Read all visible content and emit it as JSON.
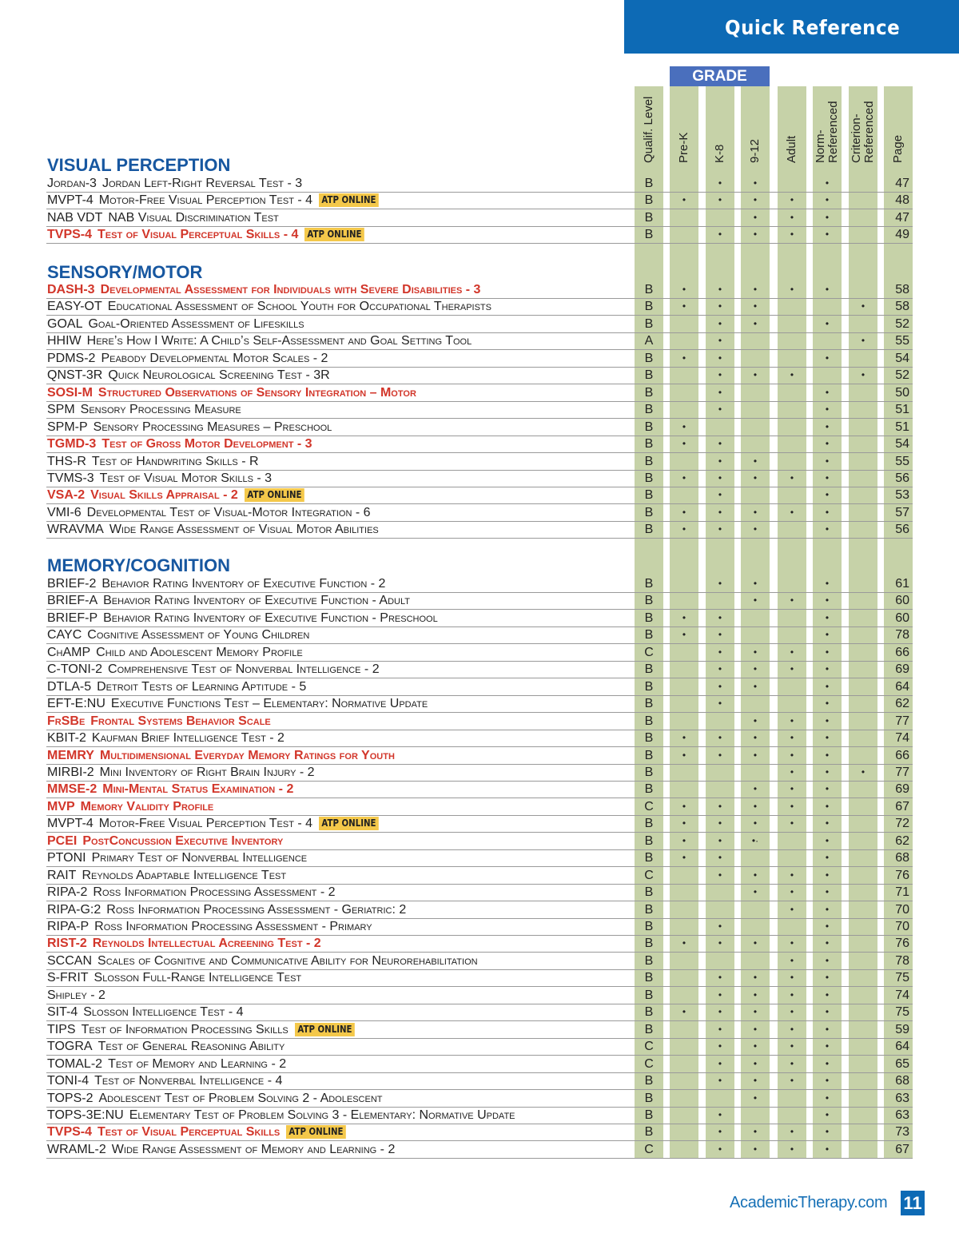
{
  "header": {
    "title": "Quick Reference",
    "grade_label": "GRADE"
  },
  "columns": [
    "Qualif. Level",
    "Pre-K",
    "K-8",
    "9-12",
    "Adult",
    "Norm-\nReferenced",
    "Criterion-\nReferenced",
    "Page"
  ],
  "colors": {
    "banner": "#0d6ab5",
    "section": "#1757a0",
    "highlight_text": "#d2362a",
    "atp_badge": "#f4c84a",
    "column_fill": "#c6d2a8",
    "grade_header": "#4a6fbd"
  },
  "atp_label": "ATP ONLINE",
  "sections": [
    {
      "title": "VISUAL PERCEPTION",
      "rows": [
        {
          "code": "Jordan-3",
          "name": "Jordan Left-Right Reversal Test - 3",
          "red": false,
          "atp": false,
          "qual": "B",
          "marks": [
            "",
            "•",
            "•",
            "",
            "•",
            ""
          ],
          "page": "47"
        },
        {
          "code": "MVPT-4",
          "name": "Motor-Free Visual Perception Test - 4",
          "red": false,
          "atp": true,
          "qual": "B",
          "marks": [
            "•",
            "•",
            "•",
            "•",
            "•",
            ""
          ],
          "page": "48"
        },
        {
          "code": "NAB VDT",
          "name": "NAB Visual Discrimination Test",
          "red": false,
          "atp": false,
          "qual": "B",
          "marks": [
            "",
            "",
            "•",
            "•",
            "•",
            ""
          ],
          "page": "47"
        },
        {
          "code": "TVPS-4",
          "name": "Test of Visual Perceptual Skills - 4",
          "red": true,
          "atp": true,
          "qual": "B",
          "marks": [
            "",
            "•",
            "•",
            "•",
            "•",
            ""
          ],
          "page": "49"
        }
      ]
    },
    {
      "title": "SENSORY/MOTOR",
      "rows": [
        {
          "code": "DASH-3",
          "name": "Developmental Assessment for Individuals with Severe Disabilities - 3",
          "red": true,
          "atp": false,
          "qual": "B",
          "marks": [
            "•",
            "•",
            "•",
            "•",
            "•",
            ""
          ],
          "page": "58"
        },
        {
          "code": "EASY-OT",
          "name": "Educational Assessment of School Youth for Occupational Therapists",
          "red": false,
          "atp": false,
          "qual": "B",
          "marks": [
            "•",
            "•",
            "•",
            "",
            "",
            "•"
          ],
          "page": "58"
        },
        {
          "code": "GOAL",
          "name": "Goal-Oriented Assessment of Lifeskills",
          "red": false,
          "atp": false,
          "qual": "B",
          "marks": [
            "",
            "•",
            "•",
            "",
            "•",
            ""
          ],
          "page": "52"
        },
        {
          "code": "HHIW",
          "name": "Here’s How I Write: A Child’s Self-Assessment and Goal Setting Tool",
          "red": false,
          "atp": false,
          "qual": "A",
          "marks": [
            "",
            "•",
            "",
            "",
            "",
            "•"
          ],
          "page": "55"
        },
        {
          "code": "PDMS-2",
          "name": "Peabody Developmental Motor Scales - 2",
          "red": false,
          "atp": false,
          "qual": "B",
          "marks": [
            "•",
            "•",
            "",
            "",
            "•",
            ""
          ],
          "page": "54"
        },
        {
          "code": "QNST-3R",
          "name": "Quick Neurological Screening Test - 3R",
          "red": false,
          "atp": false,
          "qual": "B",
          "marks": [
            "",
            "•",
            "•",
            "•",
            "",
            "•"
          ],
          "page": "52"
        },
        {
          "code": "SOSI-M",
          "name": "Structured Observations of Sensory Integration – Motor",
          "red": true,
          "atp": false,
          "qual": "B",
          "marks": [
            "",
            "•",
            "",
            "",
            "•",
            ""
          ],
          "page": "50"
        },
        {
          "code": "SPM",
          "name": "Sensory Processing Measure",
          "red": false,
          "atp": false,
          "qual": "B",
          "marks": [
            "",
            "•",
            "",
            "",
            "•",
            ""
          ],
          "page": "51"
        },
        {
          "code": "SPM-P",
          "name": "Sensory Processing Measures – Preschool",
          "red": false,
          "atp": false,
          "qual": "B",
          "marks": [
            "•",
            "",
            "",
            "",
            "•",
            ""
          ],
          "page": "51"
        },
        {
          "code": "TGMD-3",
          "name": "Test of Gross Motor Development - 3",
          "red": true,
          "atp": false,
          "qual": "B",
          "marks": [
            "•",
            "•",
            "",
            "",
            "•",
            ""
          ],
          "page": "54"
        },
        {
          "code": "THS-R",
          "name": "Test of Handwriting Skills - R",
          "red": false,
          "atp": false,
          "qual": "B",
          "marks": [
            "",
            "•",
            "•",
            "",
            "•",
            ""
          ],
          "page": "55"
        },
        {
          "code": "TVMS-3",
          "name": "Test of Visual Motor Skills - 3",
          "red": false,
          "atp": false,
          "qual": "B",
          "marks": [
            "•",
            "•",
            "•",
            "•",
            "•",
            ""
          ],
          "page": "56"
        },
        {
          "code": "VSA-2",
          "name": "Visual Skills Appraisal - 2",
          "red": true,
          "atp": true,
          "qual": "B",
          "marks": [
            "",
            "•",
            "",
            "",
            "•",
            ""
          ],
          "page": "53"
        },
        {
          "code": "VMI-6",
          "name": "Developmental Test of Visual-Motor Integration - 6",
          "red": false,
          "atp": false,
          "qual": "B",
          "marks": [
            "•",
            "•",
            "•",
            "•",
            "•",
            ""
          ],
          "page": "57"
        },
        {
          "code": "WRAVMA",
          "name": "Wide Range Assessment of Visual Motor Abilities",
          "red": false,
          "atp": false,
          "qual": "B",
          "marks": [
            "•",
            "•",
            "•",
            "",
            "•",
            ""
          ],
          "page": "56"
        }
      ]
    },
    {
      "title": "MEMORY/COGNITION",
      "rows": [
        {
          "code": "BRIEF-2",
          "name": "Behavior Rating Inventory of Executive Function - 2",
          "red": false,
          "atp": false,
          "qual": "B",
          "marks": [
            "",
            "•",
            "•",
            "",
            "•",
            ""
          ],
          "page": "61"
        },
        {
          "code": "BRIEF-A",
          "name": "Behavior Rating Inventory of Executive Function - Adult",
          "red": false,
          "atp": false,
          "qual": "B",
          "marks": [
            "",
            "",
            "•",
            "•",
            "•",
            ""
          ],
          "page": "60"
        },
        {
          "code": "BRIEF-P",
          "name": "Behavior Rating Inventory of Executive Function - Preschool",
          "red": false,
          "atp": false,
          "qual": "B",
          "marks": [
            "•",
            "•",
            "",
            "",
            "•",
            ""
          ],
          "page": "60"
        },
        {
          "code": "CAYC",
          "name": "Cognitive Assessment of Young Children",
          "red": false,
          "atp": false,
          "qual": "B",
          "marks": [
            "•",
            "•",
            "",
            "",
            "•",
            ""
          ],
          "page": "78"
        },
        {
          "code": "ChAMP",
          "name": "Child and Adolescent Memory Profile",
          "red": false,
          "atp": false,
          "qual": "C",
          "marks": [
            "",
            "•",
            "•",
            "•",
            "•",
            ""
          ],
          "page": "66"
        },
        {
          "code": "C-TONI-2",
          "name": "Comprehensive Test of Nonverbal Intelligence - 2",
          "red": false,
          "atp": false,
          "qual": "B",
          "marks": [
            "",
            "•",
            "•",
            "•",
            "•",
            ""
          ],
          "page": "69"
        },
        {
          "code": "DTLA-5",
          "name": "Detroit Tests of Learning Aptitude - 5",
          "red": false,
          "atp": false,
          "qual": "B",
          "marks": [
            "",
            "•",
            "•",
            "",
            "•",
            ""
          ],
          "page": "64"
        },
        {
          "code": "EFT-E:NU",
          "name": "Executive Functions Test – Elementary: Normative Update",
          "red": false,
          "atp": false,
          "qual": "B",
          "marks": [
            "",
            "•",
            "",
            "",
            "•",
            ""
          ],
          "page": "62"
        },
        {
          "code": "FrSBe",
          "name": "Frontal Systems Behavior Scale",
          "red": true,
          "atp": false,
          "qual": "B",
          "marks": [
            "",
            "",
            "•",
            "•",
            "•",
            ""
          ],
          "page": "77"
        },
        {
          "code": "KBIT-2",
          "name": "Kaufman Brief Intelligence Test - 2",
          "red": false,
          "atp": false,
          "qual": "B",
          "marks": [
            "•",
            "•",
            "•",
            "•",
            "•",
            ""
          ],
          "page": "74"
        },
        {
          "code": "MEMRY",
          "name": "Multidimensional Everyday Memory Ratings for Youth",
          "red": true,
          "atp": false,
          "qual": "B",
          "marks": [
            "•",
            "•",
            "•",
            "•",
            "•",
            ""
          ],
          "page": "66"
        },
        {
          "code": "MIRBI-2",
          "name": "Mini Inventory of Right Brain Injury - 2",
          "red": false,
          "atp": false,
          "qual": "B",
          "marks": [
            "",
            "",
            "",
            "•",
            "•",
            "•"
          ],
          "page": "77"
        },
        {
          "code": "MMSE-2",
          "name": "Mini-Mental Status Examination - 2",
          "red": true,
          "atp": false,
          "qual": "B",
          "marks": [
            "",
            "",
            "•",
            "•",
            "•",
            ""
          ],
          "page": "69"
        },
        {
          "code": "MVP",
          "name": "Memory Validity Profile",
          "red": true,
          "atp": false,
          "qual": "C",
          "marks": [
            "•",
            "•",
            "•",
            "•",
            "•",
            ""
          ],
          "page": "67"
        },
        {
          "code": "MVPT-4",
          "name": "Motor-Free Visual Perception Test - 4",
          "red": false,
          "atp": true,
          "qual": "B",
          "marks": [
            "•",
            "•",
            "•",
            "•",
            "•",
            ""
          ],
          "page": "72"
        },
        {
          "code": "PCEI",
          "name": "PostConcussion Executive Inventory",
          "red": true,
          "atp": false,
          "qual": "B",
          "marks": [
            "•",
            "•",
            "•·",
            "",
            "•",
            ""
          ],
          "page": "62"
        },
        {
          "code": "PTONI",
          "name": "Primary Test of Nonverbal Intelligence",
          "red": false,
          "atp": false,
          "qual": "B",
          "marks": [
            "•",
            "•",
            "",
            "",
            "•",
            ""
          ],
          "page": "68"
        },
        {
          "code": "RAIT",
          "name": "Reynolds Adaptable Intelligence Test",
          "red": false,
          "atp": false,
          "qual": "C",
          "marks": [
            "",
            "•",
            "•",
            "•",
            "•",
            ""
          ],
          "page": "76"
        },
        {
          "code": "RIPA-2",
          "name": "Ross Information Processing Assessment - 2",
          "red": false,
          "atp": false,
          "qual": "B",
          "marks": [
            "",
            "",
            "•",
            "•",
            "•",
            ""
          ],
          "page": "71"
        },
        {
          "code": "RIPA-G:2",
          "name": "Ross Information Processing Assessment - Geriatric: 2",
          "red": false,
          "atp": false,
          "qual": "B",
          "marks": [
            "",
            "",
            "",
            "•",
            "•",
            ""
          ],
          "page": "70"
        },
        {
          "code": "RIPA-P",
          "name": "Ross Information Processing Assessment - Primary",
          "red": false,
          "atp": false,
          "qual": "B",
          "marks": [
            "",
            "•",
            "",
            "",
            "•",
            ""
          ],
          "page": "70"
        },
        {
          "code": "RIST-2",
          "name": "Reynolds Intellectual Acreening Test - 2",
          "red": true,
          "atp": false,
          "qual": "B",
          "marks": [
            "•",
            "•",
            "•",
            "•",
            "•",
            ""
          ],
          "page": "76"
        },
        {
          "code": "SCCAN",
          "name": "Scales of Cognitive and Communicative Ability for Neurorehabilitation",
          "red": false,
          "atp": false,
          "qual": "B",
          "marks": [
            "",
            "",
            "",
            "•",
            "•",
            ""
          ],
          "page": "78"
        },
        {
          "code": "S-FRIT",
          "name": "Slosson Full-Range Intelligence Test",
          "red": false,
          "atp": false,
          "qual": "B",
          "marks": [
            "",
            "•",
            "•",
            "•",
            "•",
            ""
          ],
          "page": "75"
        },
        {
          "code": "Shipley - 2",
          "name": "",
          "red": false,
          "atp": false,
          "qual": "B",
          "marks": [
            "",
            "•",
            "•",
            "•",
            "•",
            ""
          ],
          "page": "74"
        },
        {
          "code": "SIT-4",
          "name": "Slosson Intelligence Test - 4",
          "red": false,
          "atp": false,
          "qual": "B",
          "marks": [
            "•",
            "•",
            "•",
            "•",
            "•",
            ""
          ],
          "page": "75"
        },
        {
          "code": "TIPS",
          "name": "Test of Information Processing Skills",
          "red": false,
          "atp": true,
          "qual": "B",
          "marks": [
            "",
            "•",
            "•",
            "•",
            "•",
            ""
          ],
          "page": "59"
        },
        {
          "code": "TOGRA",
          "name": "Test of General Reasoning Ability",
          "red": false,
          "atp": false,
          "qual": "C",
          "marks": [
            "",
            "•",
            "•",
            "•",
            "•",
            ""
          ],
          "page": "64"
        },
        {
          "code": "TOMAL-2",
          "name": "Test of Memory and Learning - 2",
          "red": false,
          "atp": false,
          "qual": "C",
          "marks": [
            "",
            "•",
            "•",
            "•",
            "•",
            ""
          ],
          "page": "65"
        },
        {
          "code": "TONI-4",
          "name": "Test of Nonverbal Intelligence - 4",
          "red": false,
          "atp": false,
          "qual": "B",
          "marks": [
            "",
            "•",
            "•",
            "•",
            "•",
            ""
          ],
          "page": "68"
        },
        {
          "code": "TOPS-2",
          "name": "Adolescent Test of Problem Solving 2 - Adolescent",
          "red": false,
          "atp": false,
          "qual": "B",
          "marks": [
            "",
            "",
            "•",
            "",
            "•",
            ""
          ],
          "page": "63"
        },
        {
          "code": "TOPS-3E:NU",
          "name": "Elementary Test of Problem Solving 3 - Elementary: Normative Update",
          "red": false,
          "atp": false,
          "qual": "B",
          "marks": [
            "",
            "•",
            "",
            "",
            "•",
            ""
          ],
          "page": "63"
        },
        {
          "code": "TVPS-4",
          "name": "Test of Visual Perceptual Skills",
          "red": true,
          "atp": true,
          "qual": "B",
          "marks": [
            "",
            "•",
            "•",
            "•",
            "•",
            ""
          ],
          "page": "73"
        },
        {
          "code": "WRAML-2",
          "name": "Wide Range Assessment of Memory and Learning - 2",
          "red": false,
          "atp": false,
          "qual": "C",
          "marks": [
            "",
            "•",
            "•",
            "•",
            "•",
            ""
          ],
          "page": "67"
        }
      ]
    }
  ],
  "footer": {
    "website": "AcademicTherapy.com",
    "page_number": "11"
  }
}
